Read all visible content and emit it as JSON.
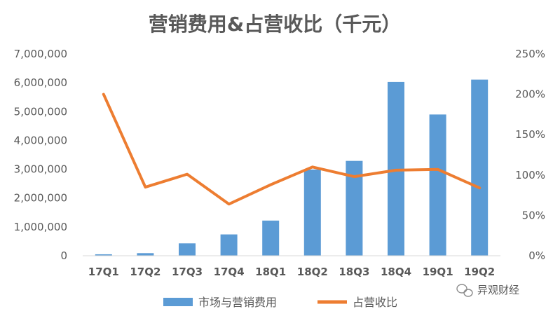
{
  "chart_data": {
    "type": "bar",
    "title": "营销费用&占营收比（千元）",
    "categories": [
      "17Q1",
      "17Q2",
      "17Q3",
      "17Q4",
      "18Q1",
      "18Q2",
      "18Q3",
      "18Q4",
      "19Q1",
      "19Q2"
    ],
    "series": [
      {
        "name": "市场与营销费用",
        "type": "bar",
        "axis": "left",
        "color": "#5B9BD5",
        "values": [
          50000,
          90000,
          430000,
          740000,
          1220000,
          2990000,
          3290000,
          6030000,
          4900000,
          6110000
        ]
      },
      {
        "name": "占营收比",
        "type": "line",
        "axis": "right",
        "color": "#ED7D31",
        "values": [
          2.0,
          0.85,
          1.01,
          0.64,
          0.88,
          1.1,
          0.98,
          1.06,
          1.07,
          0.84
        ]
      }
    ],
    "y_left": {
      "ylim": [
        0,
        7000000
      ],
      "ticks": [
        0,
        1000000,
        2000000,
        3000000,
        4000000,
        5000000,
        6000000,
        7000000
      ],
      "tick_labels": [
        "0",
        "1,000,000",
        "2,000,000",
        "3,000,000",
        "4,000,000",
        "5,000,000",
        "6,000,000",
        "7,000,000"
      ]
    },
    "y_right": {
      "ylim": [
        0,
        2.5
      ],
      "ticks": [
        0,
        0.5,
        1.0,
        1.5,
        2.0,
        2.5
      ],
      "tick_labels": [
        "0%",
        "50%",
        "100%",
        "150%",
        "200%",
        "250%"
      ]
    },
    "grid": false,
    "legend_position": "bottom"
  },
  "watermark": {
    "icon": "wechat-icon",
    "text": "异观财经"
  }
}
